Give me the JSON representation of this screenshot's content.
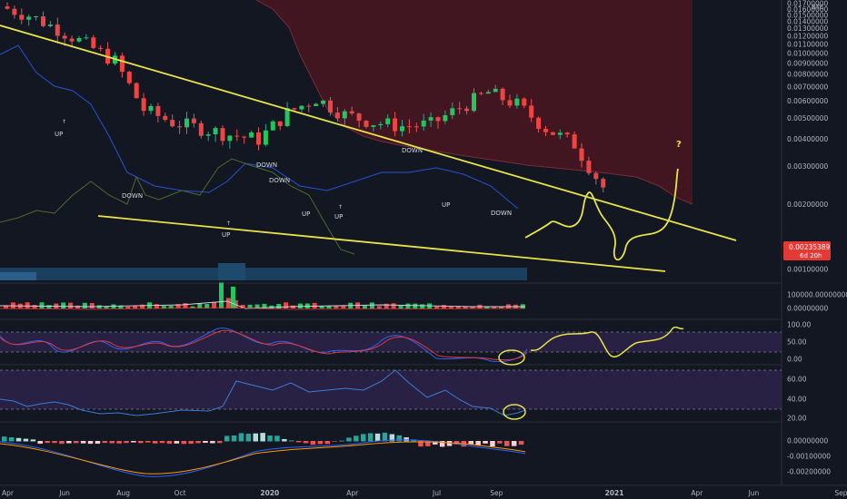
{
  "chart_data": {
    "type": "candlestick",
    "symbol_unit": "BTC",
    "x_labels": [
      "Apr",
      "Jun",
      "Aug",
      "Oct",
      "2020",
      "Apr",
      "Jul",
      "Sep",
      "2021",
      "Apr",
      "Jun",
      "Sep"
    ],
    "current_price": "0.00235389",
    "countdown": "6d 20h",
    "main_axis": {
      "scale": "log",
      "ticks": [
        "0.01700000",
        "0.01600000",
        "0.01500000",
        "0.01400000",
        "0.01300000",
        "0.01200000",
        "0.01100000",
        "0.01000000",
        "0.00900000",
        "0.00800000",
        "0.00700000",
        "0.00600000",
        "0.00500000",
        "0.00400000",
        "0.00300000",
        "0.00200000",
        "0.00100000"
      ]
    },
    "annotations": [
      {
        "text": "UP",
        "x": "2019-07",
        "price": 0.0082
      },
      {
        "text": "DOWN",
        "x": "2019-09",
        "price": 0.0044
      },
      {
        "text": "UP",
        "x": "2020-01",
        "price": 0.0026
      },
      {
        "text": "DOWN",
        "x": "2020-02",
        "price": 0.0069
      },
      {
        "text": "DOWN",
        "x": "2020-03",
        "price": 0.0059
      },
      {
        "text": "UP",
        "x": "2020-05",
        "price": 0.0035
      },
      {
        "text": "UP",
        "x": "2020-07",
        "price": 0.0034
      },
      {
        "text": "DOWN",
        "x": "2020-08",
        "price": 0.0083
      },
      {
        "text": "UP",
        "x": "2020-10",
        "price": 0.0042
      },
      {
        "text": "DOWN",
        "x": "2020-11",
        "price": 0.0037
      },
      {
        "text": "?",
        "x": "2021-07",
        "price": 0.0084
      }
    ],
    "candles_monthly_approx": {
      "x": [
        "2019-04",
        "2019-05",
        "2019-06",
        "2019-07",
        "2019-08",
        "2019-09",
        "2019-10",
        "2019-11",
        "2019-12",
        "2020-01",
        "2020-02",
        "2020-03",
        "2020-04",
        "2020-05",
        "2020-06",
        "2020-07",
        "2020-08",
        "2020-09",
        "2020-10",
        "2020-11",
        "2020-12"
      ],
      "close": [
        0.015,
        0.013,
        0.011,
        0.0092,
        0.0055,
        0.0048,
        0.0045,
        0.0042,
        0.004,
        0.0053,
        0.0062,
        0.0052,
        0.0048,
        0.0046,
        0.0047,
        0.0056,
        0.0066,
        0.0058,
        0.0045,
        0.0038,
        0.0024
      ]
    },
    "volume_axis": {
      "ticks": [
        "100000.00000000",
        "0.00000000"
      ]
    },
    "stoch_rsi_axis": {
      "ticks": [
        "100.00",
        "50.00",
        "0.00"
      ]
    },
    "rsi_axis": {
      "ticks": [
        "60.00",
        "40.00",
        "20.00"
      ]
    },
    "macd_axis": {
      "ticks": [
        "0.00000000",
        "-0.00100000",
        "-0.00200000"
      ]
    }
  }
}
